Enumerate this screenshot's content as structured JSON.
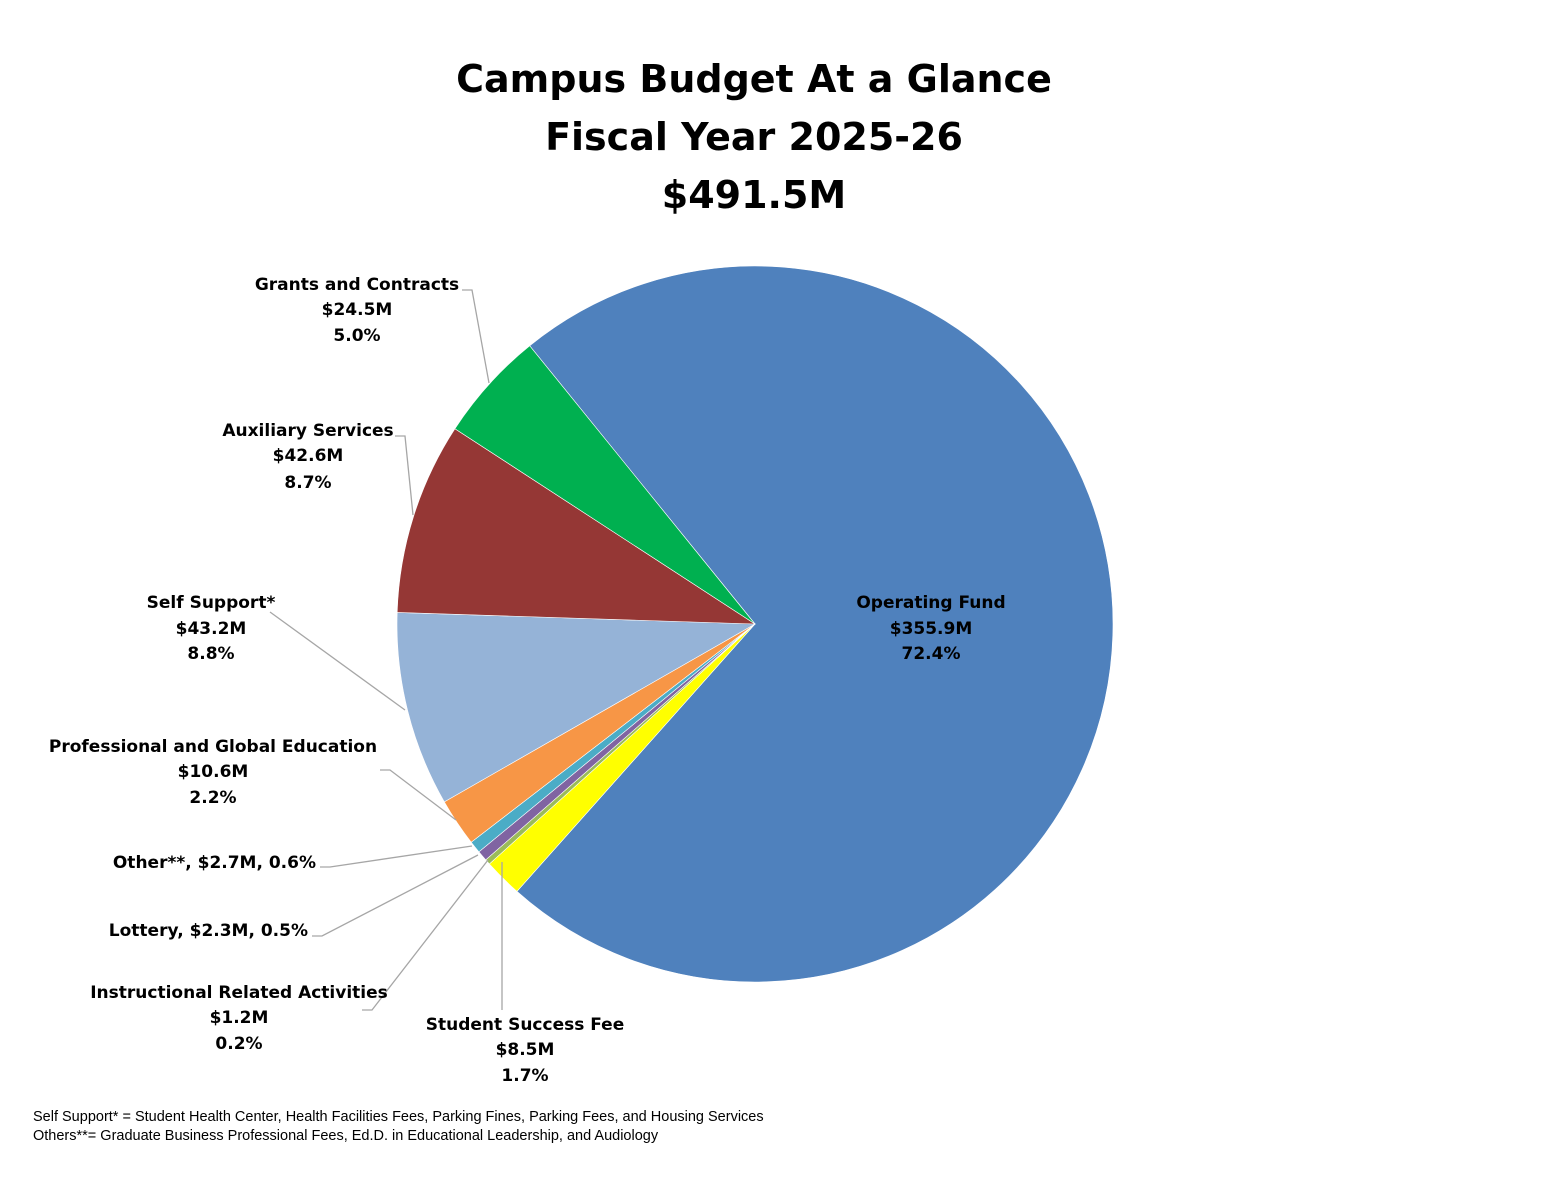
{
  "chart_data": {
    "type": "pie",
    "title": [
      "Campus Budget At a Glance",
      "Fiscal Year 2025-26",
      "$491.5M"
    ],
    "unit": "$M",
    "slices": [
      {
        "name": "Operating Fund",
        "value": 355.9,
        "value_label": "$355.9M",
        "percent": 72.4,
        "percent_label": "72.4%",
        "color": "#4F81BD"
      },
      {
        "name": "Student Success Fee",
        "value": 8.5,
        "value_label": "$8.5M",
        "percent": 1.7,
        "percent_label": "1.7%",
        "color": "#FFFF00"
      },
      {
        "name": "Instructional Related Activities",
        "value": 1.2,
        "value_label": "$1.2M",
        "percent": 0.2,
        "percent_label": "0.2%",
        "color": "#9BBB59"
      },
      {
        "name": "Lottery",
        "value": 2.3,
        "value_label": "$2.3M",
        "percent": 0.5,
        "percent_label": "0.5%",
        "color": "#8064A2",
        "inline_label": "Lottery, $2.3M, 0.5%"
      },
      {
        "name": "Other**",
        "value": 2.7,
        "value_label": "$2.7M",
        "percent": 0.6,
        "percent_label": "0.6%",
        "color": "#4BACC6",
        "inline_label": "Other**, $2.7M, 0.6%"
      },
      {
        "name": "Professional and Global Education",
        "value": 10.6,
        "value_label": "$10.6M",
        "percent": 2.2,
        "percent_label": "2.2%",
        "color": "#F79646"
      },
      {
        "name": "Self Support*",
        "value": 43.2,
        "value_label": "$43.2M",
        "percent": 8.8,
        "percent_label": "8.8%",
        "color": "#95B3D7"
      },
      {
        "name": "Auxiliary Services",
        "value": 42.6,
        "value_label": "$42.6M",
        "percent": 8.7,
        "percent_label": "8.7%",
        "color": "#953735"
      },
      {
        "name": "Grants and Contracts",
        "value": 24.5,
        "value_label": "$24.5M",
        "percent": 5.0,
        "percent_label": "5.0%",
        "color": "#00B050"
      }
    ],
    "legend": "none",
    "footnotes": [
      "Self Support* = Student Health Center, Health Facilities Fees, Parking Fines, Parking Fees, and Housing Services",
      "Others**= Graduate Business Professional Fees, Ed.D. in Educational Leadership, and Audiology"
    ]
  }
}
